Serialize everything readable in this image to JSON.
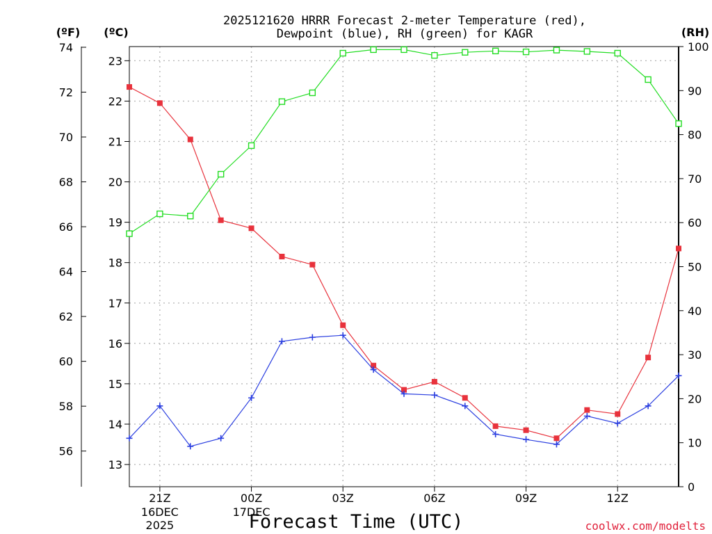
{
  "chart_data": {
    "type": "line",
    "title_line1": "2025121620 HRRR Forecast 2-meter Temperature (red),",
    "title_line2": "Dewpoint (blue), RH (green) for KAGR",
    "axis_f_label": "(ºF)",
    "axis_c_label": "(ºC)",
    "axis_rh_label": "(RH)",
    "xlabel": "Forecast Time (UTC)",
    "credit": "coolwx.com/modelts",
    "hours": [
      20,
      21,
      22,
      23,
      24,
      25,
      26,
      27,
      28,
      29,
      30,
      31,
      32,
      33,
      34,
      35,
      36,
      37,
      38
    ],
    "xlim": [
      20,
      38
    ],
    "x_ticks": [
      {
        "x": 21,
        "label": "21Z",
        "sub1": "16DEC",
        "sub2": "2025"
      },
      {
        "x": 24,
        "label": "00Z",
        "sub1": "17DEC",
        "sub2": ""
      },
      {
        "x": 27,
        "label": "03Z",
        "sub1": "",
        "sub2": ""
      },
      {
        "x": 30,
        "label": "06Z",
        "sub1": "",
        "sub2": ""
      },
      {
        "x": 33,
        "label": "09Z",
        "sub1": "",
        "sub2": ""
      },
      {
        "x": 36,
        "label": "12Z",
        "sub1": "",
        "sub2": ""
      }
    ],
    "celsius_ticks": [
      "13",
      "14",
      "15",
      "16",
      "17",
      "18",
      "19",
      "20",
      "21",
      "22",
      "23"
    ],
    "fahrenheit_ticks": [
      "56",
      "58",
      "60",
      "62",
      "64",
      "66",
      "68",
      "70",
      "72",
      "74"
    ],
    "rh_ticks": [
      "0",
      "10",
      "20",
      "30",
      "40",
      "50",
      "60",
      "70",
      "80",
      "90",
      "100"
    ],
    "c_lim": [
      12.45,
      23.35
    ],
    "rh_lim": [
      0,
      100
    ],
    "series": [
      {
        "name": "Temperature",
        "unit": "C",
        "color": "#e8323c",
        "marker": "filled-square",
        "values": [
          22.35,
          21.95,
          21.05,
          19.05,
          18.85,
          18.15,
          17.95,
          16.45,
          15.45,
          14.85,
          15.05,
          14.65,
          13.95,
          13.85,
          13.65,
          14.35,
          14.25,
          15.65,
          18.35
        ]
      },
      {
        "name": "Dewpoint",
        "unit": "C",
        "color": "#2a3ee0",
        "marker": "plus",
        "values": [
          13.65,
          14.45,
          13.45,
          13.65,
          14.65,
          16.05,
          16.15,
          16.2,
          15.35,
          14.75,
          14.72,
          14.45,
          13.75,
          13.62,
          13.5,
          14.2,
          14.02,
          14.45,
          15.2
        ]
      },
      {
        "name": "RH",
        "unit": "%",
        "color": "#22dd22",
        "marker": "open-square",
        "values": [
          57.5,
          62,
          61.5,
          71,
          77.5,
          87.5,
          89.5,
          98.5,
          99.3,
          99.3,
          98.0,
          98.7,
          99.0,
          98.8,
          99.2,
          98.9,
          98.5,
          92.5,
          82.5
        ]
      }
    ]
  }
}
